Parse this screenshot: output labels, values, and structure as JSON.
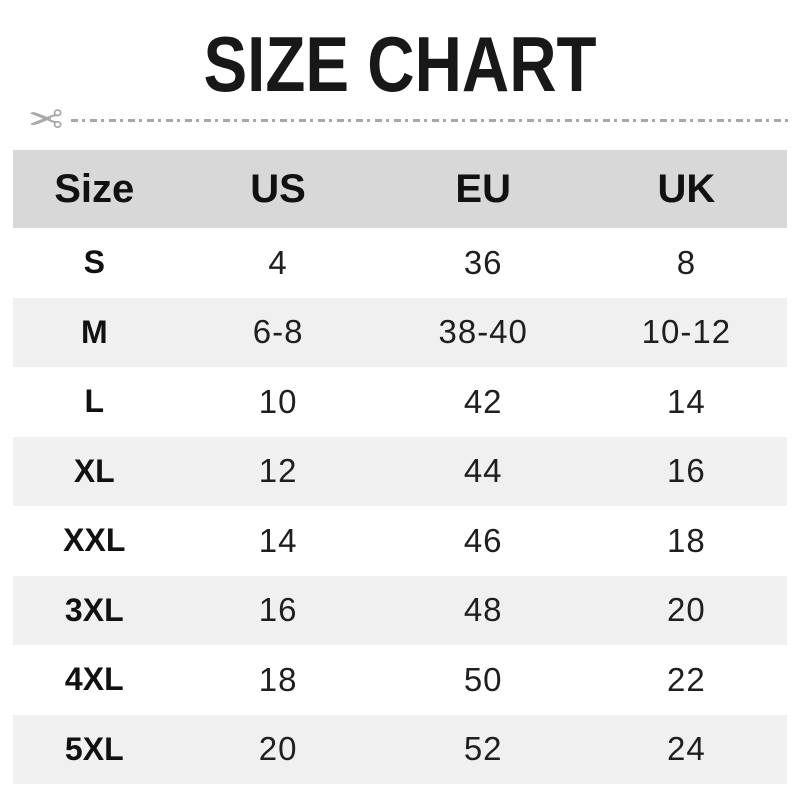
{
  "title": "SIZE CHART",
  "cut_line": {
    "scissors_glyph": "✂"
  },
  "table": {
    "headers": {
      "size": "Size",
      "us": "US",
      "eu": "EU",
      "uk": "UK"
    },
    "rows": [
      {
        "size": "S",
        "us": "4",
        "eu": "36",
        "uk": "8"
      },
      {
        "size": "M",
        "us": "6-8",
        "eu": "38-40",
        "uk": "10-12"
      },
      {
        "size": "L",
        "us": "10",
        "eu": "42",
        "uk": "14"
      },
      {
        "size": "XL",
        "us": "12",
        "eu": "44",
        "uk": "16"
      },
      {
        "size": "XXL",
        "us": "14",
        "eu": "46",
        "uk": "18"
      },
      {
        "size": "3XL",
        "us": "16",
        "eu": "48",
        "uk": "20"
      },
      {
        "size": "4XL",
        "us": "18",
        "eu": "50",
        "uk": "22"
      },
      {
        "size": "5XL",
        "us": "20",
        "eu": "52",
        "uk": "24"
      }
    ]
  },
  "colors": {
    "header_bg": "#d8d8d8",
    "alt_row_bg": "#f0f0f0",
    "divider_gray": "#a8a8a8",
    "text": "#151515"
  },
  "chart_data": {
    "type": "table",
    "title": "SIZE CHART",
    "columns": [
      "Size",
      "US",
      "EU",
      "UK"
    ],
    "rows": [
      [
        "S",
        "4",
        "36",
        "8"
      ],
      [
        "M",
        "6-8",
        "38-40",
        "10-12"
      ],
      [
        "L",
        "10",
        "42",
        "14"
      ],
      [
        "XL",
        "12",
        "44",
        "16"
      ],
      [
        "XXL",
        "14",
        "46",
        "18"
      ],
      [
        "3XL",
        "16",
        "48",
        "20"
      ],
      [
        "4XL",
        "18",
        "50",
        "22"
      ],
      [
        "5XL",
        "20",
        "52",
        "24"
      ]
    ]
  }
}
